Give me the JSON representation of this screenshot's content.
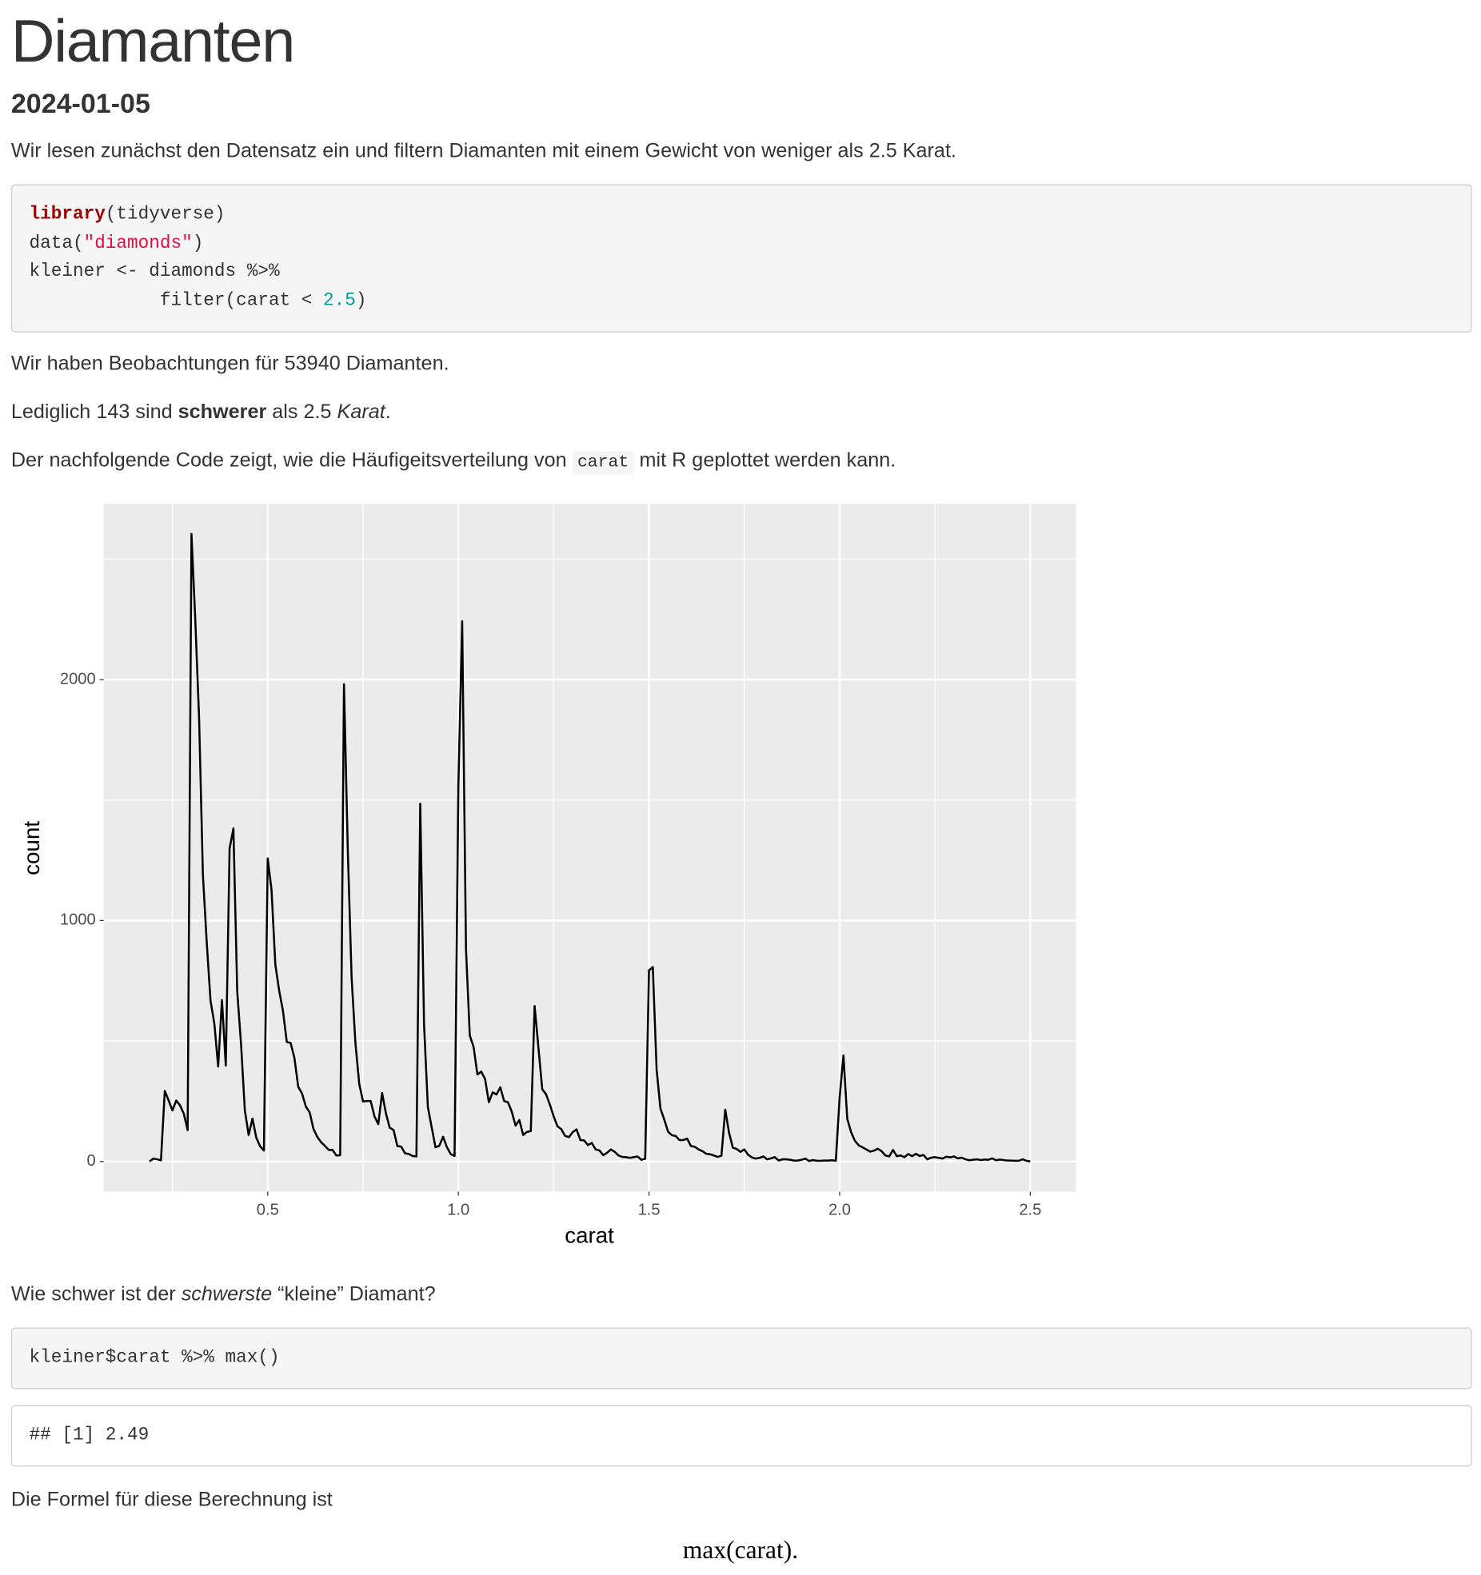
{
  "title": "Diamanten",
  "date": "2024-01-05",
  "paragraph_1": "Wir lesen zunächst den Datensatz ein und filtern Diamanten mit einem Gewicht von weniger als 2.5 Karat.",
  "code_1": [
    "library",
    "(tidyverse)\ndata(",
    "\"diamonds\"",
    ")\nkleiner <- diamonds %>%\n            filter(carat < ",
    "2.5",
    ")"
  ],
  "paragraph_2": "Wir haben Beobachtungen für 53940 Diamanten.",
  "paragraph_3": [
    "Lediglich 143 sind ",
    "schwerer",
    " als 2.5 ",
    "Karat",
    "."
  ],
  "paragraph_4": [
    "Der nachfolgende Code zeigt, wie die Häufigeitsverteilung von ",
    "carat",
    " mit R geplottet werden kann."
  ],
  "chart_data": {
    "type": "line",
    "x_label": "carat",
    "y_label": "count",
    "color": "#000000",
    "grid": true,
    "xlim": [
      0.07,
      2.62
    ],
    "ylim": [
      -125,
      2730
    ],
    "xticks": [
      0.5,
      {
        "value": 1,
        "label": "1.0"
      },
      1.5,
      {
        "value": 2,
        "label": "2.0"
      },
      2.5
    ],
    "yticks": [
      0,
      1000,
      2000
    ],
    "x": [
      0.19,
      0.2,
      0.21,
      0.22,
      0.23,
      0.24,
      0.25,
      0.26,
      0.27,
      0.28,
      0.29,
      0.3,
      0.31,
      0.32,
      0.33,
      0.34,
      0.35,
      0.36,
      0.37,
      0.38,
      0.39,
      0.4,
      0.41,
      0.42,
      0.43,
      0.44,
      0.45,
      0.46,
      0.47,
      0.48,
      0.49,
      0.5,
      0.51,
      0.52,
      0.53,
      0.54,
      0.55,
      0.56,
      0.57,
      0.58,
      0.59,
      0.6,
      0.61,
      0.62,
      0.63,
      0.64,
      0.65,
      0.66,
      0.67,
      0.68,
      0.69,
      0.7,
      0.71,
      0.72,
      0.73,
      0.74,
      0.75,
      0.76,
      0.77,
      0.78,
      0.79,
      0.8,
      0.81,
      0.82,
      0.83,
      0.84,
      0.85,
      0.86,
      0.87,
      0.88,
      0.89,
      0.9,
      0.91,
      0.92,
      0.93,
      0.94,
      0.95,
      0.96,
      0.97,
      0.98,
      0.99,
      1.0,
      1.01,
      1.02,
      1.03,
      1.04,
      1.05,
      1.06,
      1.07,
      1.08,
      1.09,
      1.1,
      1.11,
      1.12,
      1.13,
      1.14,
      1.15,
      1.16,
      1.17,
      1.18,
      1.19,
      1.2,
      1.21,
      1.22,
      1.23,
      1.24,
      1.25,
      1.26,
      1.27,
      1.28,
      1.29,
      1.3,
      1.31,
      1.32,
      1.33,
      1.34,
      1.35,
      1.36,
      1.37,
      1.38,
      1.39,
      1.4,
      1.41,
      1.42,
      1.43,
      1.44,
      1.45,
      1.46,
      1.47,
      1.48,
      1.49,
      1.5,
      1.51,
      1.52,
      1.53,
      1.54,
      1.55,
      1.56,
      1.57,
      1.58,
      1.59,
      1.6,
      1.61,
      1.62,
      1.63,
      1.64,
      1.65,
      1.66,
      1.67,
      1.68,
      1.69,
      1.7,
      1.71,
      1.72,
      1.73,
      1.74,
      1.75,
      1.76,
      1.77,
      1.78,
      1.79,
      1.8,
      1.81,
      1.82,
      1.83,
      1.84,
      1.85,
      1.86,
      1.87,
      1.88,
      1.89,
      1.9,
      1.91,
      1.92,
      1.93,
      1.94,
      1.95,
      1.96,
      1.97,
      1.98,
      1.99,
      2.0,
      2.01,
      2.02,
      2.03,
      2.04,
      2.05,
      2.06,
      2.07,
      2.08,
      2.09,
      2.1,
      2.11,
      2.12,
      2.13,
      2.14,
      2.15,
      2.16,
      2.17,
      2.18,
      2.19,
      2.2,
      2.21,
      2.22,
      2.23,
      2.24,
      2.25,
      2.26,
      2.27,
      2.28,
      2.29,
      2.3,
      2.31,
      2.32,
      2.33,
      2.34,
      2.35,
      2.36,
      2.37,
      2.38,
      2.39,
      2.4,
      2.41,
      2.42,
      2.43,
      2.44,
      2.45,
      2.46,
      2.47,
      2.48,
      2.49,
      2.5
    ],
    "values": [
      0,
      12,
      9,
      5,
      293,
      254,
      212,
      253,
      233,
      198,
      130,
      2604,
      2249,
      1840,
      1189,
      910,
      667,
      572,
      394,
      670,
      398,
      1299,
      1382,
      706,
      488,
      212,
      110,
      178,
      99,
      63,
      45,
      1258,
      1127,
      817,
      709,
      625,
      496,
      492,
      430,
      310,
      282,
      228,
      204,
      135,
      102,
      80,
      65,
      48,
      48,
      25,
      26,
      1981,
      1294,
      764,
      492,
      322,
      249,
      251,
      251,
      187,
      155,
      284,
      200,
      140,
      131,
      64,
      62,
      34,
      31,
      23,
      21,
      1485,
      570,
      226,
      142,
      59,
      65,
      103,
      59,
      31,
      23,
      1558,
      2242,
      883,
      523,
      475,
      361,
      373,
      342,
      246,
      287,
      278,
      308,
      251,
      246,
      207,
      149,
      172,
      110,
      123,
      126,
      645,
      473,
      300,
      279,
      236,
      187,
      146,
      134,
      106,
      101,
      122,
      133,
      89,
      87,
      68,
      77,
      50,
      46,
      26,
      36,
      50,
      40,
      25,
      19,
      18,
      15,
      18,
      21,
      7,
      11,
      793,
      807,
      381,
      220,
      174,
      124,
      109,
      106,
      89,
      89,
      95,
      64,
      61,
      50,
      43,
      32,
      30,
      25,
      19,
      24,
      215,
      119,
      57,
      52,
      40,
      50,
      28,
      17,
      12,
      15,
      21,
      9,
      13,
      18,
      4,
      9,
      9,
      7,
      4,
      4,
      7,
      12,
      2,
      6,
      3,
      3,
      4,
      4,
      5,
      3,
      265,
      440,
      177,
      122,
      86,
      67,
      59,
      50,
      41,
      45,
      53,
      43,
      25,
      21,
      48,
      22,
      25,
      18,
      31,
      22,
      32,
      23,
      27,
      9,
      16,
      18,
      15,
      12,
      20,
      17,
      21,
      13,
      16,
      9,
      5,
      7,
      9,
      6,
      8,
      7,
      13,
      5,
      8,
      6,
      4,
      4,
      3,
      3,
      9,
      3,
      0
    ]
  },
  "paragraph_5": [
    "Wie schwer ist der ",
    "schwerste",
    " “kleine” Diamant?"
  ],
  "code_2": "kleiner$carat %>% max()",
  "output_1": "## [1] 2.49",
  "paragraph_6": "Die Formel für diese Berechnung ist",
  "formula": "max(carat)."
}
